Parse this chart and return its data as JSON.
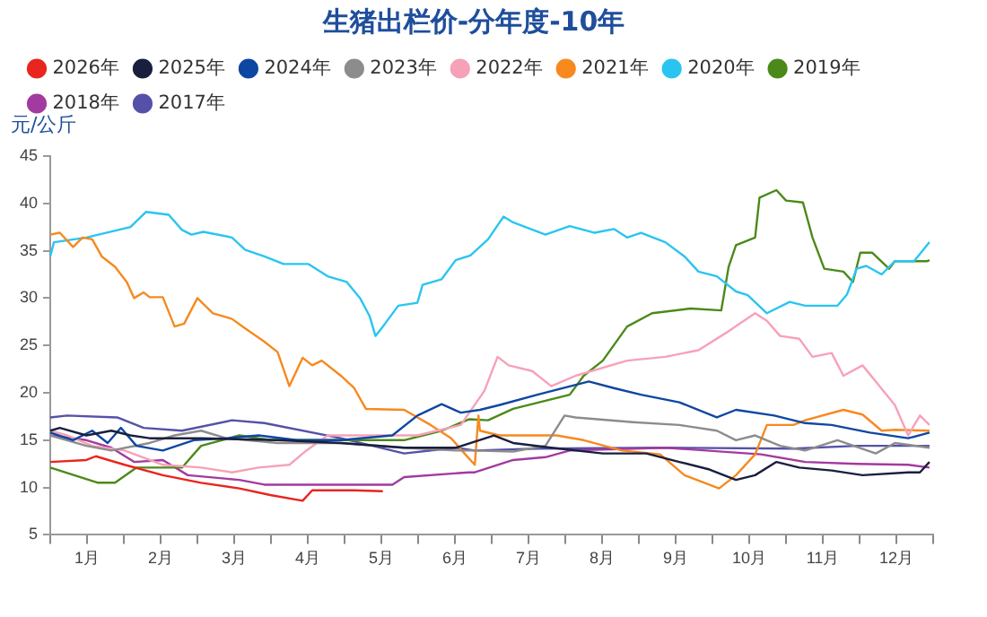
{
  "chart_data": {
    "type": "line",
    "title": "生猪出栏价-分年度-10年",
    "ylabel": "元/公斤",
    "legend": "top",
    "marker": "none",
    "grid": false,
    "line_style": "solid",
    "xlim": [
      0,
      12
    ],
    "ylim": [
      5,
      45
    ],
    "yticks": [
      5,
      10,
      15,
      20,
      25,
      30,
      35,
      40,
      45
    ],
    "xticks": [
      {
        "value": 0,
        "label": null
      },
      {
        "value": 0.5,
        "label": "1月"
      },
      {
        "value": 1,
        "label": null
      },
      {
        "value": 1.5,
        "label": "2月"
      },
      {
        "value": 2,
        "label": null
      },
      {
        "value": 2.5,
        "label": "3月"
      },
      {
        "value": 3,
        "label": null
      },
      {
        "value": 3.5,
        "label": "4月"
      },
      {
        "value": 4,
        "label": null
      },
      {
        "value": 4.5,
        "label": "5月"
      },
      {
        "value": 5,
        "label": null
      },
      {
        "value": 5.5,
        "label": "6月"
      },
      {
        "value": 6,
        "label": null
      },
      {
        "value": 6.5,
        "label": "7月"
      },
      {
        "value": 7,
        "label": null
      },
      {
        "value": 7.5,
        "label": "8月"
      },
      {
        "value": 8,
        "label": null
      },
      {
        "value": 8.5,
        "label": "9月"
      },
      {
        "value": 9,
        "label": null
      },
      {
        "value": 9.5,
        "label": "10月"
      },
      {
        "value": 10,
        "label": null
      },
      {
        "value": 10.5,
        "label": "11月"
      },
      {
        "value": 11,
        "label": null
      },
      {
        "value": 11.5,
        "label": "12月"
      },
      {
        "value": 12,
        "label": null
      }
    ],
    "series": [
      {
        "name": "2026年",
        "color": "#e8251e",
        "x": [
          0,
          0.49,
          0.62,
          1.01,
          1.53,
          2.05,
          2.57,
          2.99,
          3.43,
          3.56,
          3.77,
          4.13,
          4.52
        ],
        "values": [
          12.7,
          12.9,
          13.3,
          12.4,
          11.3,
          10.5,
          9.9,
          9.2,
          8.6,
          9.7,
          9.7,
          9.7,
          9.6
        ]
      },
      {
        "name": "2025年",
        "color": "#1a1f3f",
        "x": [
          0,
          0.13,
          0.49,
          0.83,
          1.09,
          1.35,
          2.05,
          3.09,
          3.95,
          4.81,
          5.51,
          6.03,
          6.29,
          6.81,
          7.51,
          8.1,
          8.55,
          8.96,
          9.32,
          9.58,
          9.87,
          10.18,
          10.62,
          11.04,
          11.66,
          11.82,
          11.95
        ],
        "values": [
          16.0,
          16.3,
          15.5,
          16.0,
          15.5,
          15.2,
          15.2,
          15.0,
          14.7,
          14.2,
          14.2,
          15.5,
          14.7,
          14.2,
          13.6,
          13.6,
          12.7,
          11.9,
          10.8,
          11.3,
          12.7,
          12.1,
          11.8,
          11.3,
          11.6,
          11.6,
          12.7
        ]
      },
      {
        "name": "2024年",
        "color": "#0e47a1",
        "x": [
          0,
          0.31,
          0.57,
          0.78,
          0.96,
          1.17,
          1.53,
          1.95,
          2.39,
          2.83,
          3.35,
          3.95,
          4.65,
          4.99,
          5.32,
          5.58,
          5.84,
          6.1,
          6.62,
          7.32,
          7.66,
          8.03,
          8.55,
          9.06,
          9.32,
          9.84,
          10.26,
          10.62,
          11.14,
          11.66,
          11.95
        ],
        "values": [
          15.8,
          15.0,
          16.0,
          14.7,
          16.3,
          14.4,
          13.9,
          15.0,
          15.2,
          15.5,
          15.0,
          15.0,
          15.5,
          17.6,
          18.8,
          17.9,
          18.2,
          18.7,
          19.8,
          21.2,
          20.5,
          19.8,
          19.0,
          17.4,
          18.2,
          17.6,
          16.8,
          16.6,
          15.8,
          15.2,
          15.8
        ]
      },
      {
        "name": "2023年",
        "color": "#8c8c8c",
        "x": [
          0,
          0.49,
          0.83,
          1.35,
          1.69,
          2.05,
          2.39,
          3.09,
          3.95,
          4.81,
          5.51,
          5.77,
          6.29,
          6.73,
          6.99,
          7.14,
          7.92,
          8.55,
          9.06,
          9.32,
          9.58,
          9.92,
          10.26,
          10.7,
          11.22,
          11.48,
          11.95
        ],
        "values": [
          15.5,
          14.4,
          13.9,
          14.7,
          15.5,
          16.0,
          15.2,
          14.7,
          14.7,
          14.2,
          13.9,
          13.9,
          13.8,
          14.4,
          17.6,
          17.4,
          16.9,
          16.6,
          16.0,
          15.0,
          15.5,
          14.4,
          13.9,
          15.0,
          13.6,
          14.7,
          14.2
        ]
      },
      {
        "name": "2022年",
        "color": "#f7a1b8",
        "x": [
          0,
          0.23,
          0.57,
          1.01,
          1.53,
          2.05,
          2.47,
          2.83,
          3.25,
          3.48,
          3.77,
          4.29,
          4.99,
          5.58,
          5.9,
          6.08,
          6.23,
          6.55,
          6.81,
          7.14,
          7.84,
          8.36,
          8.81,
          9.22,
          9.58,
          9.74,
          9.92,
          10.18,
          10.36,
          10.62,
          10.78,
          11.04,
          11.27,
          11.48,
          11.66,
          11.82,
          11.95
        ],
        "values": [
          16.0,
          15.5,
          14.4,
          13.9,
          12.4,
          12.1,
          11.6,
          12.1,
          12.4,
          13.9,
          15.5,
          15.5,
          15.5,
          16.6,
          20.2,
          23.8,
          22.9,
          22.3,
          20.7,
          21.8,
          23.4,
          23.8,
          24.5,
          26.5,
          28.4,
          27.6,
          26.0,
          25.7,
          23.8,
          24.2,
          21.8,
          22.9,
          20.7,
          18.7,
          15.5,
          17.6,
          16.6
        ]
      },
      {
        "name": "2021年",
        "color": "#f7891f",
        "x": [
          0,
          0.13,
          0.31,
          0.44,
          0.57,
          0.7,
          0.88,
          1.04,
          1.14,
          1.27,
          1.35,
          1.53,
          1.69,
          1.82,
          2.0,
          2.21,
          2.47,
          2.65,
          2.91,
          3.09,
          3.25,
          3.43,
          3.56,
          3.69,
          3.95,
          4.13,
          4.29,
          4.81,
          5.17,
          5.45,
          5.64,
          5.77,
          5.82,
          5.84,
          6.1,
          6.55,
          6.88,
          7.25,
          7.77,
          8.29,
          8.62,
          9.09,
          9.32,
          9.58,
          9.74,
          10.1,
          10.26,
          10.78,
          11.04,
          11.3,
          11.48,
          11.95
        ],
        "values": [
          36.7,
          36.9,
          35.4,
          36.4,
          36.2,
          34.4,
          33.3,
          31.7,
          30.0,
          30.6,
          30.1,
          30.1,
          27.0,
          27.3,
          30.0,
          28.4,
          27.8,
          26.8,
          25.4,
          24.3,
          20.7,
          23.7,
          22.9,
          23.4,
          21.8,
          20.5,
          18.3,
          18.2,
          16.6,
          15.2,
          13.5,
          12.4,
          17.6,
          16.0,
          15.5,
          15.5,
          15.5,
          15.0,
          13.9,
          13.5,
          11.3,
          9.9,
          11.3,
          13.5,
          16.6,
          16.6,
          17.1,
          18.2,
          17.7,
          16.0,
          16.1,
          16.0
        ]
      },
      {
        "name": "2020年",
        "color": "#29c5f0",
        "x": [
          0,
          0.05,
          0.49,
          1.09,
          1.3,
          1.61,
          1.79,
          1.92,
          2.08,
          2.47,
          2.65,
          2.91,
          3.17,
          3.51,
          3.77,
          4.03,
          4.21,
          4.34,
          4.42,
          4.55,
          4.73,
          4.99,
          5.06,
          5.32,
          5.51,
          5.71,
          5.95,
          6.16,
          6.29,
          6.73,
          7.06,
          7.4,
          7.66,
          7.84,
          8.03,
          8.36,
          8.62,
          8.81,
          9.06,
          9.32,
          9.48,
          9.74,
          10.05,
          10.26,
          10.7,
          10.83,
          10.96,
          11.09,
          11.3,
          11.48,
          11.74,
          11.95
        ],
        "values": [
          34.4,
          35.9,
          36.4,
          37.5,
          39.1,
          38.8,
          37.2,
          36.7,
          37.0,
          36.4,
          35.1,
          34.4,
          33.6,
          33.6,
          32.3,
          31.7,
          30.0,
          28.1,
          26.0,
          27.3,
          29.2,
          29.5,
          31.4,
          32.0,
          34.0,
          34.5,
          36.2,
          38.6,
          38.0,
          36.7,
          37.6,
          36.9,
          37.3,
          36.4,
          36.9,
          35.9,
          34.4,
          32.8,
          32.3,
          30.7,
          30.3,
          28.4,
          29.6,
          29.2,
          29.2,
          30.4,
          33.1,
          33.4,
          32.5,
          33.9,
          33.9,
          35.9
        ]
      },
      {
        "name": "2019年",
        "color": "#4b8a1a",
        "x": [
          0,
          0.65,
          0.88,
          1.17,
          1.79,
          2.05,
          2.57,
          2.99,
          3.95,
          4.81,
          5.32,
          5.69,
          5.95,
          6.29,
          7.06,
          7.25,
          7.51,
          7.84,
          8.18,
          8.7,
          9.12,
          9.22,
          9.32,
          9.58,
          9.64,
          9.87,
          10.0,
          10.23,
          10.36,
          10.52,
          10.78,
          10.91,
          11.01,
          11.17,
          11.4,
          11.48,
          11.92,
          11.95
        ],
        "values": [
          12.1,
          10.5,
          10.5,
          12.1,
          12.1,
          14.4,
          15.5,
          15.0,
          15.0,
          15.0,
          16.0,
          17.2,
          17.1,
          18.3,
          19.8,
          21.8,
          23.4,
          27.0,
          28.4,
          28.9,
          28.7,
          33.3,
          35.6,
          36.4,
          40.6,
          41.4,
          40.3,
          40.1,
          36.4,
          33.1,
          32.8,
          31.7,
          34.8,
          34.8,
          33.1,
          33.9,
          33.9,
          34.0
        ]
      },
      {
        "name": "2018年",
        "color": "#a23aa0",
        "x": [
          0,
          0.49,
          0.83,
          1.14,
          1.53,
          1.87,
          2.57,
          2.91,
          3.95,
          4.65,
          4.81,
          5.69,
          5.77,
          6.29,
          6.73,
          7.06,
          8.36,
          9.66,
          10.26,
          10.96,
          11.66,
          11.95
        ],
        "values": [
          15.5,
          15.0,
          14.2,
          12.7,
          12.9,
          11.3,
          10.8,
          10.3,
          10.3,
          10.3,
          11.1,
          11.6,
          11.6,
          12.9,
          13.2,
          13.9,
          14.2,
          13.5,
          12.7,
          12.5,
          12.4,
          12.1
        ]
      },
      {
        "name": "2017年",
        "color": "#5551a8",
        "x": [
          0,
          0.23,
          0.91,
          1.27,
          1.79,
          2.47,
          2.91,
          3.95,
          4.81,
          5.51,
          5.77,
          6.62,
          8.36,
          10.1,
          10.96,
          11.95
        ],
        "values": [
          17.4,
          17.6,
          17.4,
          16.3,
          16.0,
          17.1,
          16.8,
          15.2,
          13.6,
          14.2,
          13.9,
          14.1,
          14.2,
          14.1,
          14.4,
          14.4
        ]
      }
    ]
  }
}
